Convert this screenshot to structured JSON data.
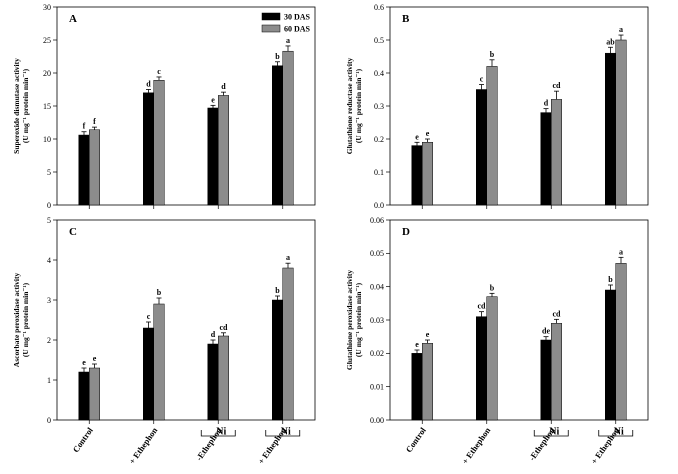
{
  "chart_data": [
    {
      "type": "bar",
      "panel": "A",
      "ylabel_line1": "Superoxide dismutase activity",
      "ylabel_line2": "(U mg⁻¹ protein min⁻¹)",
      "ylim": [
        0,
        30
      ],
      "yticks": [
        0,
        5,
        10,
        15,
        20,
        25,
        30
      ],
      "ytick_labels": [
        "0",
        "5",
        "10",
        "15",
        "20",
        "25",
        "30"
      ],
      "categories": [
        "Control",
        "+ Ethephon",
        "-Ethephon",
        "+ Ethephon"
      ],
      "series": [
        {
          "name": "30 DAS",
          "color": "#000000",
          "values": [
            10.6,
            17.0,
            14.7,
            21.1
          ],
          "errors": [
            0.5,
            0.5,
            0.4,
            0.6
          ],
          "labels": [
            "f",
            "d",
            "e",
            "b"
          ]
        },
        {
          "name": "60 DAS",
          "color": "#8c8c8c",
          "values": [
            11.4,
            18.9,
            16.6,
            23.3
          ],
          "errors": [
            0.4,
            0.5,
            0.5,
            0.8
          ],
          "labels": [
            "f",
            "c",
            "d",
            "a"
          ]
        }
      ]
    },
    {
      "type": "bar",
      "panel": "B",
      "ylabel_line1": "Glutathione reductase activity",
      "ylabel_line2": "(U mg⁻¹ protein min⁻¹)",
      "ylim": [
        0,
        0.6
      ],
      "yticks": [
        0,
        0.1,
        0.2,
        0.3,
        0.4,
        0.5,
        0.6
      ],
      "ytick_labels": [
        "0.0",
        "0.1",
        "0.2",
        "0.3",
        "0.4",
        "0.5",
        "0.6"
      ],
      "categories": [
        "Control",
        "+ Ethephon",
        "-Ethephon",
        "+ Ethephon"
      ],
      "series": [
        {
          "name": "30 DAS",
          "color": "#000000",
          "values": [
            0.18,
            0.35,
            0.28,
            0.46
          ],
          "errors": [
            0.01,
            0.015,
            0.012,
            0.018
          ],
          "labels": [
            "e",
            "c",
            "d",
            "ab"
          ]
        },
        {
          "name": "60 DAS",
          "color": "#8c8c8c",
          "values": [
            0.19,
            0.42,
            0.32,
            0.5
          ],
          "errors": [
            0.01,
            0.02,
            0.025,
            0.015
          ],
          "labels": [
            "e",
            "b",
            "cd",
            "a"
          ]
        }
      ]
    },
    {
      "type": "bar",
      "panel": "C",
      "ylabel_line1": "Ascorbate peroxidase activity",
      "ylabel_line2": "(U mg⁻¹ protein min⁻¹)",
      "ylim": [
        0,
        5
      ],
      "yticks": [
        0,
        1,
        2,
        3,
        4,
        5
      ],
      "ytick_labels": [
        "0",
        "1",
        "2",
        "3",
        "4",
        "5"
      ],
      "categories": [
        "Control",
        "+ Ethephon",
        "-Ethephon",
        "+ Ethephon"
      ],
      "series": [
        {
          "name": "30 DAS",
          "color": "#000000",
          "values": [
            1.2,
            2.3,
            1.9,
            3.0
          ],
          "errors": [
            0.1,
            0.15,
            0.1,
            0.1
          ],
          "labels": [
            "e",
            "c",
            "d",
            "b"
          ]
        },
        {
          "name": "60 DAS",
          "color": "#8c8c8c",
          "values": [
            1.3,
            2.9,
            2.1,
            3.8
          ],
          "errors": [
            0.1,
            0.15,
            0.08,
            0.12
          ],
          "labels": [
            "e",
            "b",
            "cd",
            "a"
          ]
        }
      ]
    },
    {
      "type": "bar",
      "panel": "D",
      "ylabel_line1": "Glutathione peroxidase activity",
      "ylabel_line2": "(U mg⁻¹ protein min⁻¹)",
      "ylim": [
        0,
        0.06
      ],
      "yticks": [
        0,
        0.01,
        0.02,
        0.03,
        0.04,
        0.05,
        0.06
      ],
      "ytick_labels": [
        "0.00",
        "0.01",
        "0.02",
        "0.03",
        "0.04",
        "0.05",
        "0.06"
      ],
      "categories": [
        "Control",
        "+ Ethephon",
        "-Ethephon",
        "+ Ethephon"
      ],
      "series": [
        {
          "name": "30 DAS",
          "color": "#000000",
          "values": [
            0.02,
            0.031,
            0.024,
            0.039
          ],
          "errors": [
            0.001,
            0.0015,
            0.001,
            0.0015
          ],
          "labels": [
            "e",
            "cd",
            "de",
            "b"
          ]
        },
        {
          "name": "60 DAS",
          "color": "#8c8c8c",
          "values": [
            0.023,
            0.037,
            0.029,
            0.047
          ],
          "errors": [
            0.001,
            0.001,
            0.0012,
            0.0018
          ],
          "labels": [
            "e",
            "b",
            "cd",
            "a"
          ]
        }
      ]
    }
  ],
  "legend": {
    "items": [
      {
        "label": "30 DAS",
        "color": "#000000"
      },
      {
        "label": "60 DAS",
        "color": "#8c8c8c"
      }
    ]
  },
  "group_label": "Ni"
}
